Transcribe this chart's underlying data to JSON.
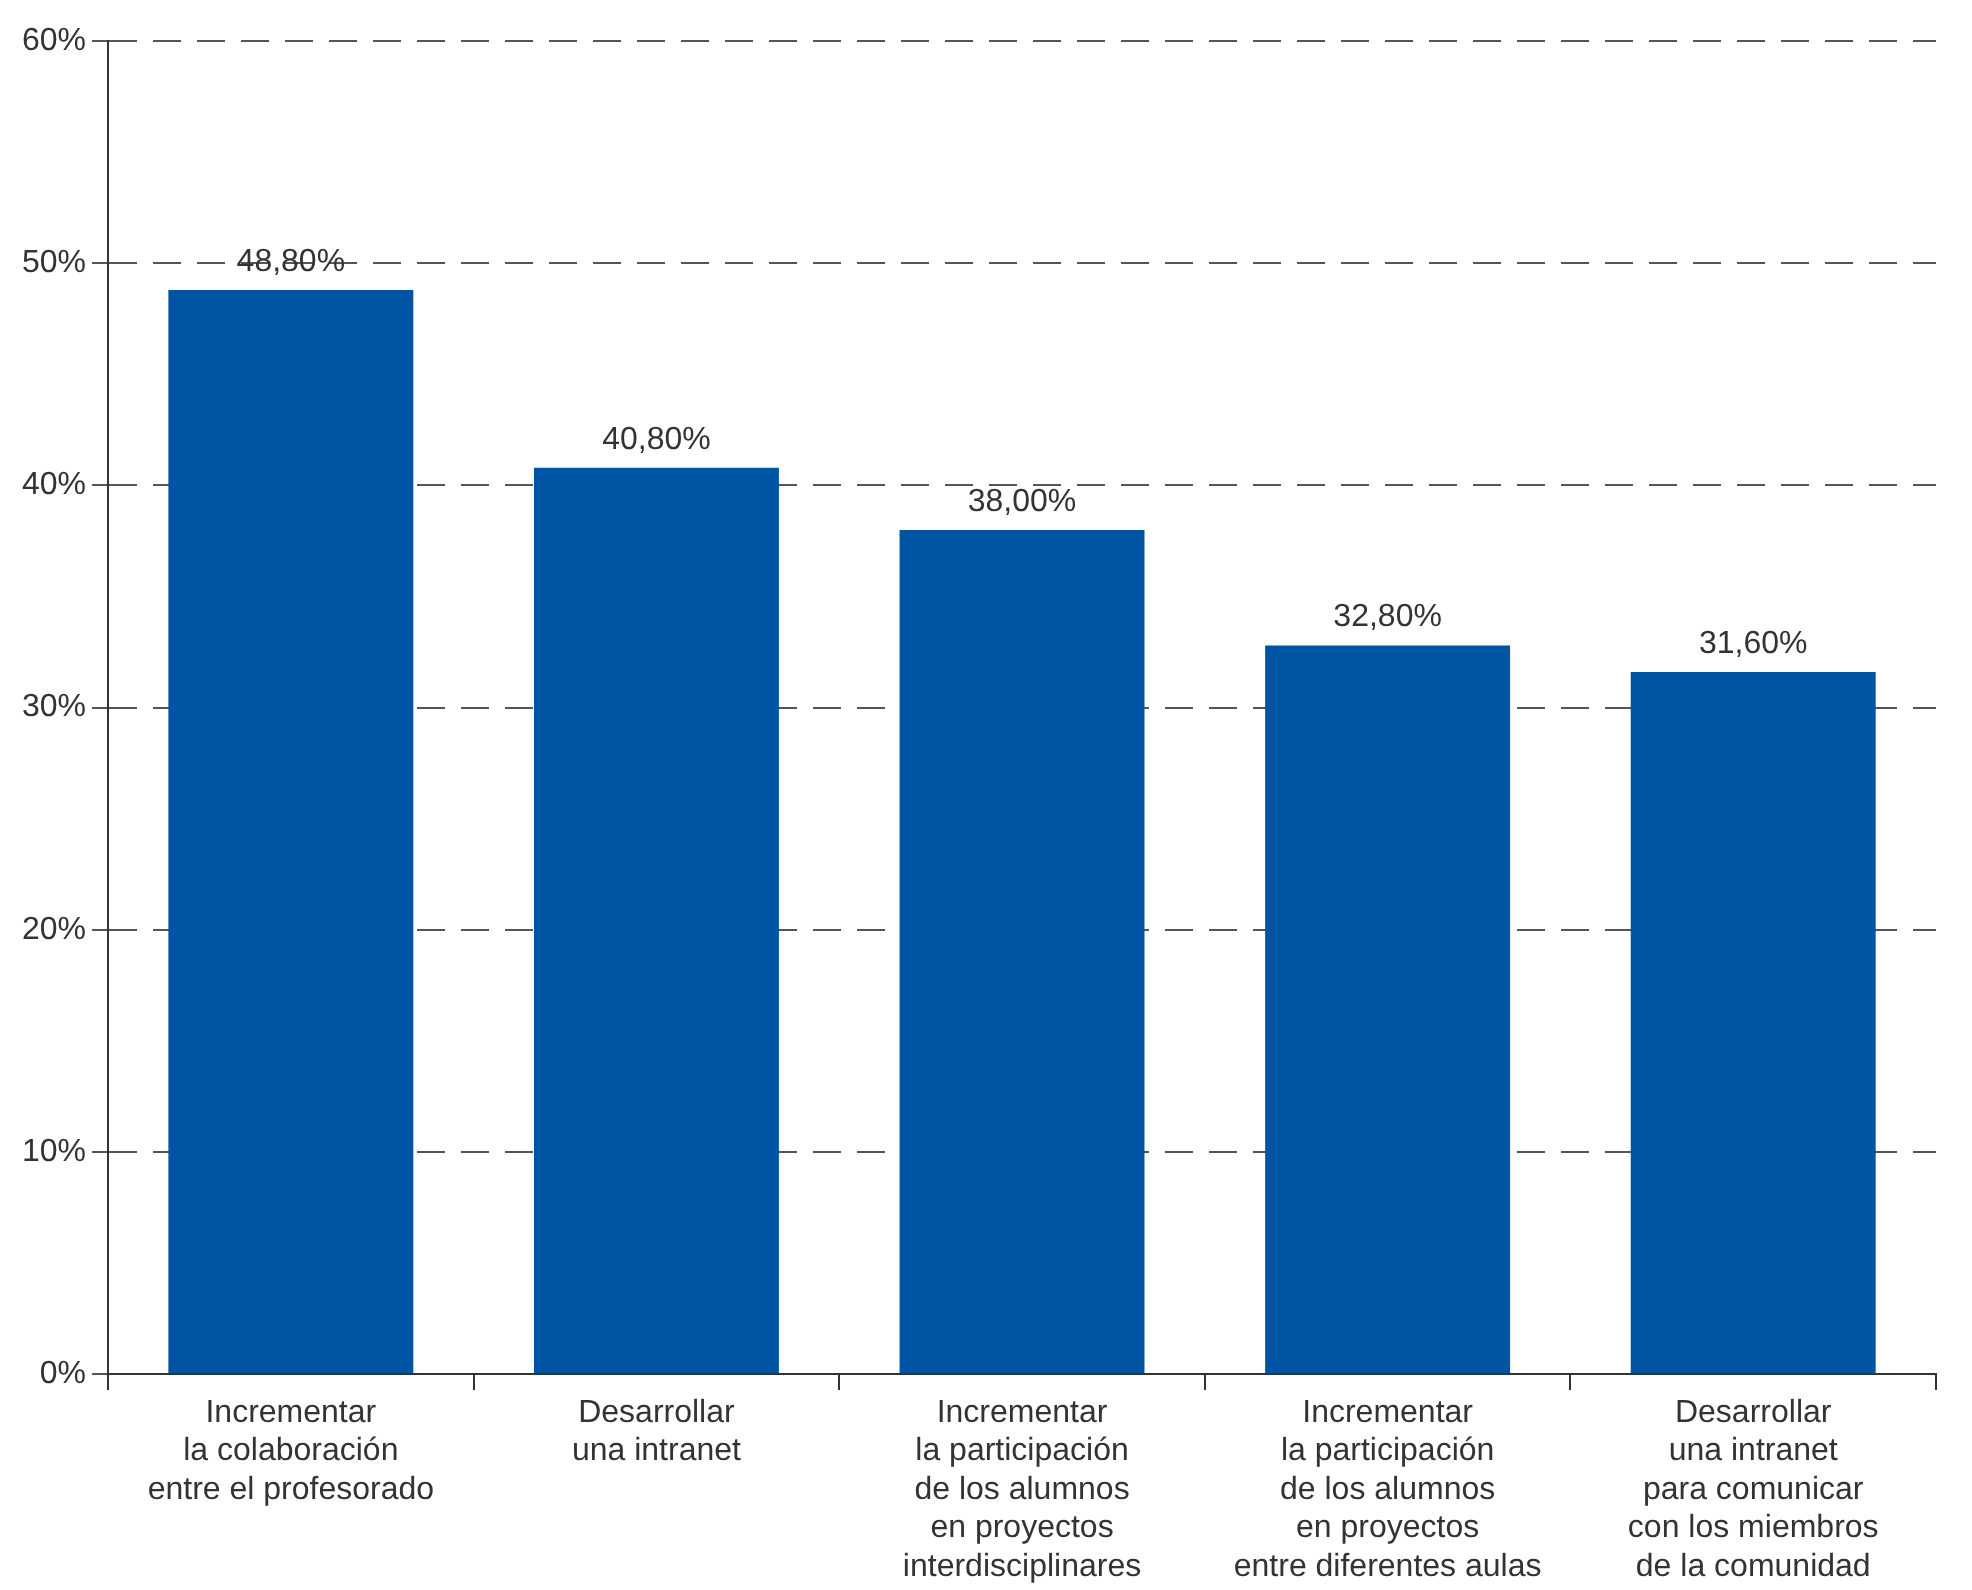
{
  "chart_data": {
    "type": "bar",
    "categories": [
      "Incrementar\nla colaboración\nentre el profesorado",
      "Desarrollar\nuna intranet",
      "Incrementar\nla participación\nde los alumnos\nen proyectos\ninterdisciplinares",
      "Incrementar\nla participación\nde los alumnos\nen proyectos\nentre diferentes aulas",
      "Desarrollar\nuna intranet\npara comunicar\ncon los miembros\nde la comunidad"
    ],
    "values": [
      48.8,
      40.8,
      38.0,
      32.8,
      31.6
    ],
    "value_labels": [
      "48,80%",
      "40,80%",
      "38,00%",
      "32,80%",
      "31,60%"
    ],
    "color": "#0054a4",
    "ylim": [
      0,
      60
    ],
    "yticks": [
      {
        "value": 0,
        "label": "0%"
      },
      {
        "value": 10,
        "label": "10%"
      },
      {
        "value": 20,
        "label": "20%"
      },
      {
        "value": 30,
        "label": "30%"
      },
      {
        "value": 40,
        "label": "40%"
      },
      {
        "value": 50,
        "label": "50%"
      },
      {
        "value": 60,
        "label": "60%"
      }
    ],
    "grid": "y",
    "legend": false
  }
}
